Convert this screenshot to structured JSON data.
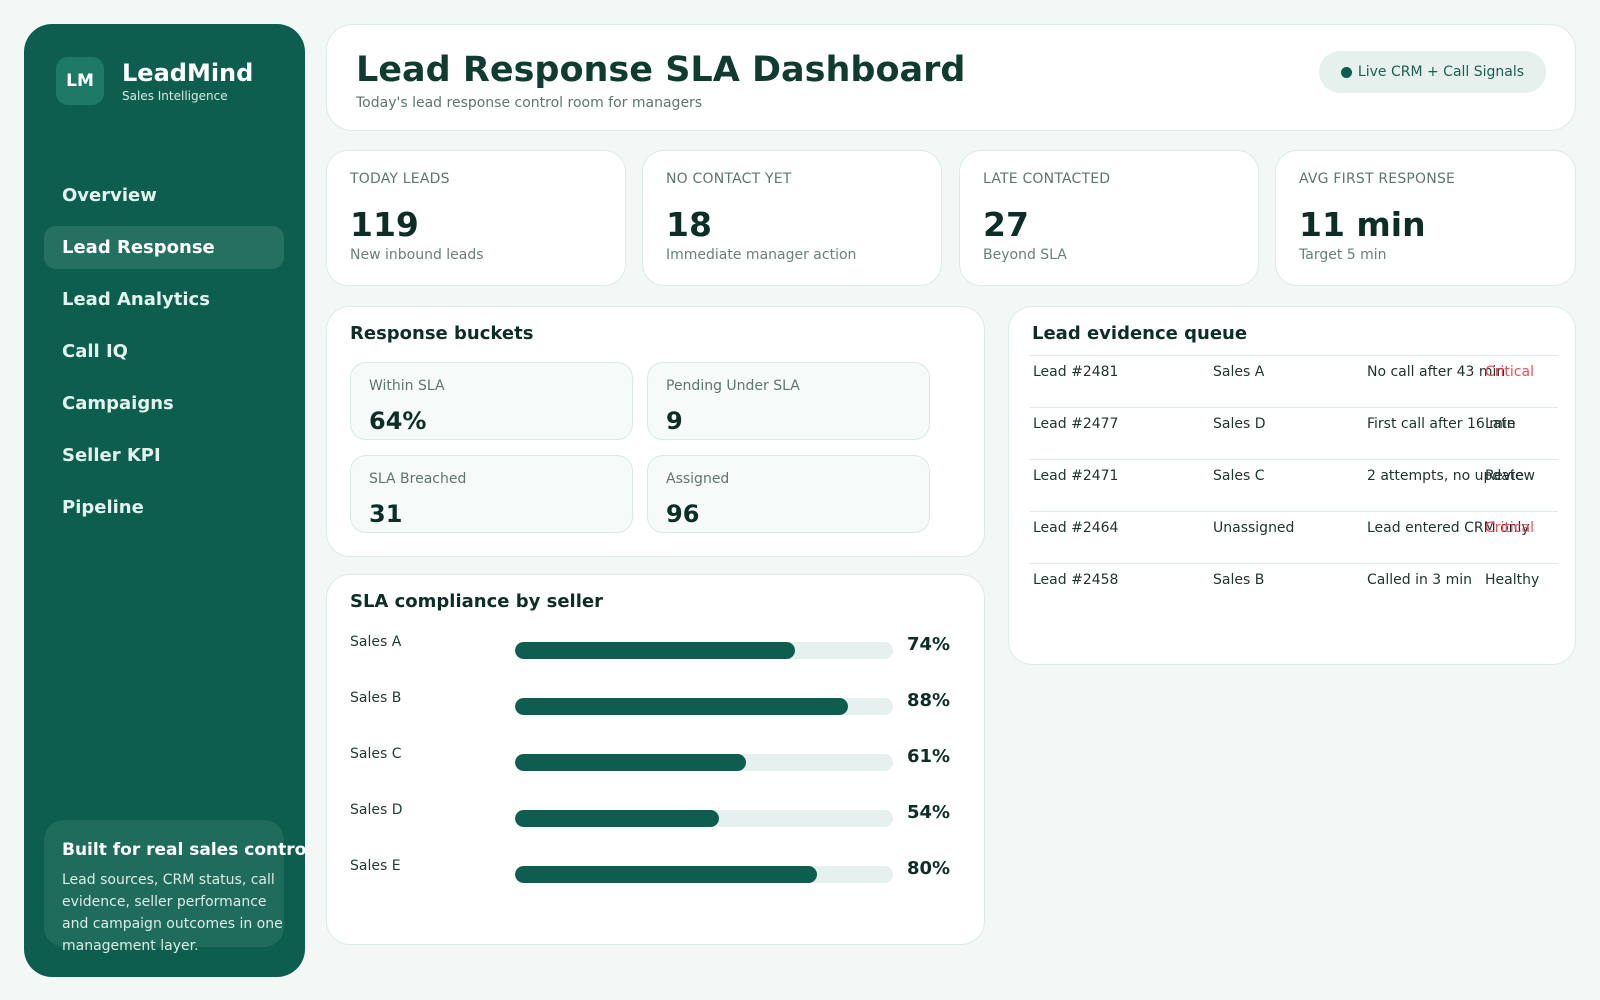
{
  "brand": {
    "logo_text": "LM",
    "name": "LeadMind",
    "tagline": "Sales Intelligence"
  },
  "nav": [
    {
      "label": "Overview",
      "active": false
    },
    {
      "label": "Lead Response",
      "active": true
    },
    {
      "label": "Lead Analytics",
      "active": false
    },
    {
      "label": "Call IQ",
      "active": false
    },
    {
      "label": "Campaigns",
      "active": false
    },
    {
      "label": "Seller KPI",
      "active": false
    },
    {
      "label": "Pipeline",
      "active": false
    }
  ],
  "promo": {
    "title": "Built for real sales control",
    "text": "Lead sources, CRM status, call evidence, seller performance and campaign outcomes in one management layer."
  },
  "header": {
    "title": "Lead Response SLA Dashboard",
    "subtitle": "Today's lead response control room for managers",
    "live_badge": "Live CRM + Call Signals"
  },
  "kpis": [
    {
      "label": "TODAY LEADS",
      "value": "119",
      "sub": "New inbound leads"
    },
    {
      "label": "NO CONTACT YET",
      "value": "18",
      "sub": "Immediate manager action"
    },
    {
      "label": "LATE CONTACTED",
      "value": "27",
      "sub": "Beyond SLA"
    },
    {
      "label": "AVG FIRST RESPONSE",
      "value": "11 min",
      "sub": "Target 5 min"
    }
  ],
  "buckets": {
    "title": "Response buckets",
    "items": [
      {
        "label": "Within SLA",
        "value": "64%"
      },
      {
        "label": "Pending Under SLA",
        "value": "9"
      },
      {
        "label": "SLA Breached",
        "value": "31"
      },
      {
        "label": "Assigned",
        "value": "96"
      }
    ]
  },
  "compliance": {
    "title": "SLA compliance by seller",
    "sellers": [
      {
        "name": "Sales A",
        "pct": 74,
        "pct_label": "74%"
      },
      {
        "name": "Sales B",
        "pct": 88,
        "pct_label": "88%"
      },
      {
        "name": "Sales C",
        "pct": 61,
        "pct_label": "61%"
      },
      {
        "name": "Sales D",
        "pct": 54,
        "pct_label": "54%"
      },
      {
        "name": "Sales E",
        "pct": 80,
        "pct_label": "80%"
      }
    ]
  },
  "queue": {
    "title": "Lead evidence queue",
    "rows": [
      {
        "lead": "Lead #2481",
        "seller": "Sales A",
        "evidence": "No call after 43 min",
        "status": "Critical"
      },
      {
        "lead": "Lead #2477",
        "seller": "Sales D",
        "evidence": "First call after 16 min",
        "status": "Late"
      },
      {
        "lead": "Lead #2471",
        "seller": "Sales C",
        "evidence": "2 attempts, no update",
        "status": "Review"
      },
      {
        "lead": "Lead #2464",
        "seller": "Unassigned",
        "evidence": "Lead entered CRM only",
        "status": "Critical"
      },
      {
        "lead": "Lead #2458",
        "seller": "Sales B",
        "evidence": "Called in 3 min",
        "status": "Healthy"
      }
    ]
  },
  "colors": {
    "sidebar": "#0d5e4f",
    "accent": "#0d5e4f",
    "critical": "#e0525c",
    "background": "#f3f8f6"
  }
}
